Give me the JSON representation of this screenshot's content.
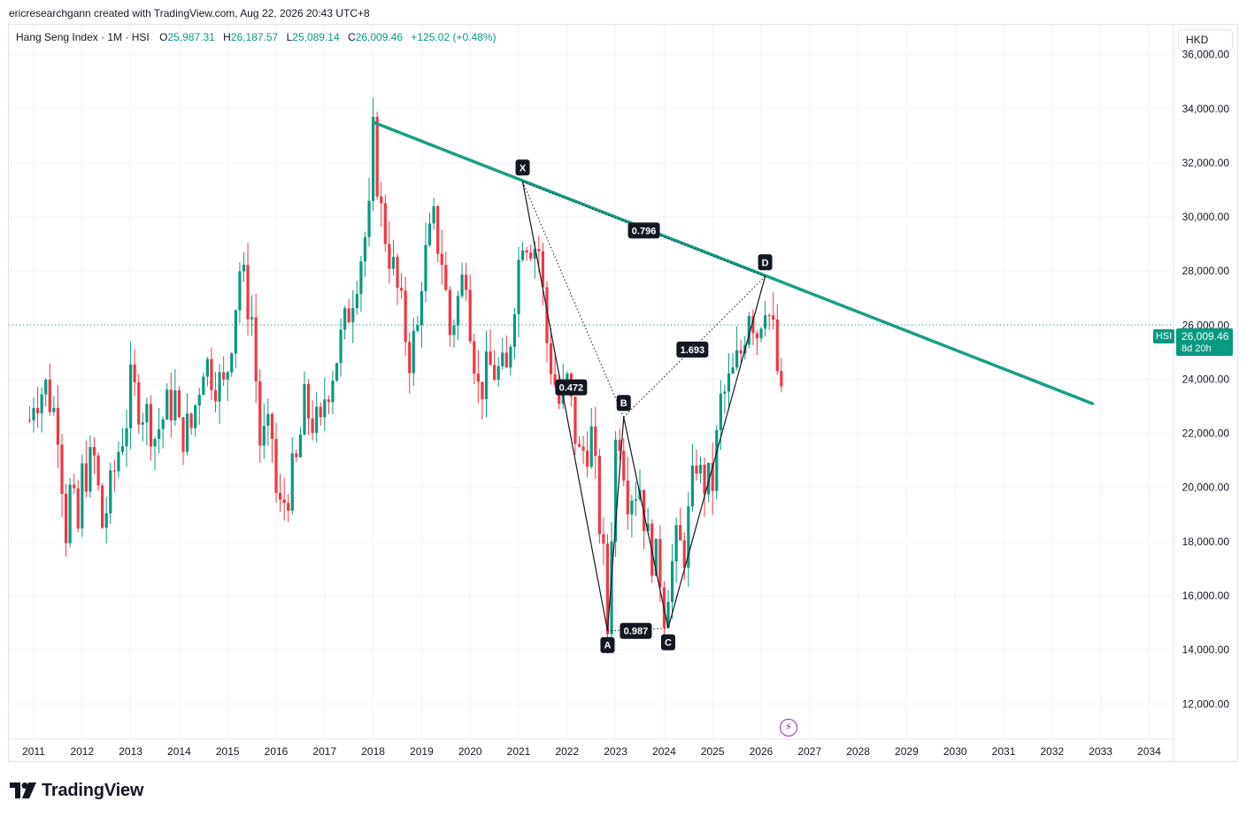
{
  "header": {
    "credit": "ericresearchgann created with TradingView.com, Aug 22, 2026 20:43 UTC+8"
  },
  "legend": {
    "title": "Hang Seng Index · 1M · HSI",
    "open_label": "O",
    "open": "25,987.31",
    "high_label": "H",
    "high": "26,187.57",
    "low_label": "L",
    "low": "25,089.14",
    "close_label": "C",
    "close": "26,009.46",
    "change": "+125.02 (+0.48%)"
  },
  "currency": "HKD",
  "price_tag": {
    "symbol": "HSI",
    "price": "26,009.46",
    "countdown": "8d 20h"
  },
  "logo": {
    "text": "TradingView"
  },
  "colors": {
    "up": "#089981",
    "down": "#f23645",
    "trendline": "#1a9e85",
    "grid": "#f0f3fa",
    "axis_text": "#131722"
  },
  "chart_data": {
    "type": "candlestick",
    "title": "Hang Seng Index · 1M · HSI",
    "y_axis": {
      "min": 10700,
      "max": 37100,
      "ticks": [
        12000,
        14000,
        16000,
        18000,
        20000,
        22000,
        24000,
        26000,
        28000,
        30000,
        32000,
        34000,
        36000
      ],
      "tick_labels": [
        "12,000.00",
        "14,000.00",
        "16,000.00",
        "18,000.00",
        "20,000.00",
        "22,000.00",
        "24,000.00",
        "26,000.00",
        "28,000.00",
        "30,000.00",
        "32,000.00",
        "34,000.00",
        "36,000.00"
      ]
    },
    "x_axis": {
      "ticks": [
        "2011",
        "2012",
        "2013",
        "2014",
        "2015",
        "2016",
        "2017",
        "2018",
        "2019",
        "2020",
        "2021",
        "2022",
        "2023",
        "2024",
        "2025",
        "2026",
        "2027",
        "2028",
        "2029",
        "2030",
        "2031",
        "2032",
        "2033",
        "2034"
      ]
    },
    "last_price": 26009.46,
    "closes": [
      [
        2010.917,
        22500
      ],
      [
        2011.0,
        23400
      ],
      [
        2011.25,
        23700
      ],
      [
        2011.5,
        22400
      ],
      [
        2011.667,
        18500
      ],
      [
        2011.75,
        19800
      ],
      [
        2011.917,
        18400
      ],
      [
        2012.0,
        20400
      ],
      [
        2012.25,
        21000
      ],
      [
        2012.417,
        18600
      ],
      [
        2012.583,
        19800
      ],
      [
        2012.75,
        21400
      ],
      [
        2012.917,
        22600
      ],
      [
        2013.0,
        23700
      ],
      [
        2013.417,
        22400
      ],
      [
        2013.5,
        21900
      ],
      [
        2013.75,
        22900
      ],
      [
        2013.917,
        23300
      ],
      [
        2014.0,
        22000
      ],
      [
        2014.25,
        22200
      ],
      [
        2014.5,
        24750
      ],
      [
        2014.667,
        24300
      ],
      [
        2014.917,
        23600
      ],
      [
        2015.0,
        24500
      ],
      [
        2015.25,
        28100
      ],
      [
        2015.5,
        26300
      ],
      [
        2015.667,
        21700
      ],
      [
        2015.917,
        21900
      ],
      [
        2016.0,
        19700
      ],
      [
        2016.083,
        19100
      ],
      [
        2016.417,
        20800
      ],
      [
        2016.583,
        23000
      ],
      [
        2016.917,
        22000
      ],
      [
        2017.0,
        23400
      ],
      [
        2017.417,
        25900
      ],
      [
        2017.667,
        28000
      ],
      [
        2017.917,
        29900
      ],
      [
        2018.0,
        32900
      ],
      [
        2018.167,
        30100
      ],
      [
        2018.417,
        28000
      ],
      [
        2018.75,
        24900
      ],
      [
        2018.917,
        25800
      ],
      [
        2019.0,
        27900
      ],
      [
        2019.25,
        29700
      ],
      [
        2019.417,
        28500
      ],
      [
        2019.583,
        25700
      ],
      [
        2019.917,
        28200
      ],
      [
        2020.0,
        26300
      ],
      [
        2020.167,
        23600
      ],
      [
        2020.417,
        24400
      ],
      [
        2020.75,
        24100
      ],
      [
        2020.917,
        27200
      ],
      [
        2021.083,
        29500
      ],
      [
        2021.417,
        28800
      ],
      [
        2021.583,
        25400
      ],
      [
        2021.833,
        23100
      ],
      [
        2022.0,
        23800
      ],
      [
        2022.25,
        21100
      ],
      [
        2022.5,
        21900
      ],
      [
        2022.75,
        17200
      ],
      [
        2022.833,
        14700
      ],
      [
        2022.917,
        18600
      ],
      [
        2023.0,
        21600
      ],
      [
        2023.083,
        22100
      ],
      [
        2023.25,
        19900
      ],
      [
        2023.5,
        20100
      ],
      [
        2023.667,
        18000
      ],
      [
        2023.917,
        16800
      ],
      [
        2024.0,
        15500
      ],
      [
        2024.083,
        16500
      ],
      [
        2024.25,
        17800
      ],
      [
        2024.417,
        17700
      ],
      [
        2024.667,
        21100
      ],
      [
        2024.75,
        20300
      ],
      [
        2024.917,
        20100
      ],
      [
        2025.0,
        20200
      ],
      [
        2025.167,
        23100
      ],
      [
        2025.417,
        24100
      ],
      [
        2025.583,
        25000
      ],
      [
        2025.75,
        26800
      ],
      [
        2025.917,
        25800
      ],
      [
        2026.083,
        27100
      ],
      [
        2026.25,
        25600
      ],
      [
        2026.417,
        23000
      ],
      [
        2026.5,
        26009
      ]
    ],
    "trendline": {
      "from": [
        2018.0,
        33500
      ],
      "to": [
        2032.833,
        23100
      ]
    },
    "pattern": {
      "points": [
        {
          "label": "X",
          "x": 2021.083,
          "y": 31300
        },
        {
          "label": "A",
          "x": 2022.833,
          "y": 14700
        },
        {
          "label": "B",
          "x": 2023.167,
          "y": 22600
        },
        {
          "label": "C",
          "x": 2024.083,
          "y": 14800
        },
        {
          "label": "D",
          "x": 2026.083,
          "y": 27800
        }
      ],
      "ratios": [
        {
          "label": "0.796",
          "x": 2023.583,
          "y": 29500
        },
        {
          "label": "0.472",
          "x": 2022.083,
          "y": 23700
        },
        {
          "label": "1.693",
          "x": 2024.583,
          "y": 25100
        },
        {
          "label": "0.987",
          "x": 2023.417,
          "y": 14700
        }
      ]
    }
  }
}
